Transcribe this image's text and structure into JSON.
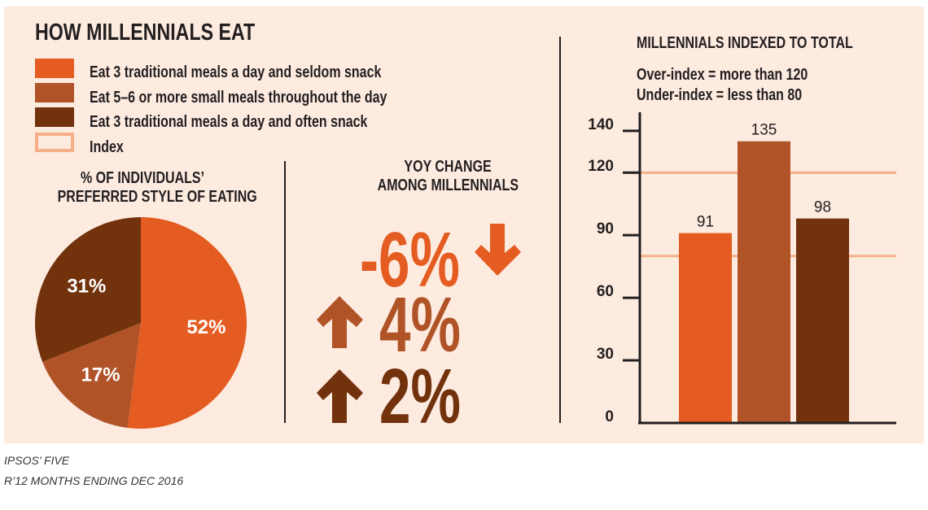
{
  "title": "HOW MILLENNIALS EAT",
  "colors": {
    "seldom": "#e55c22",
    "small": "#b05428",
    "often": "#72320c",
    "index": "#f5b08a",
    "background": "#fdebe0"
  },
  "legend": [
    {
      "label": "Eat 3 traditional meals a day and seldom snack",
      "color": "#e55c22"
    },
    {
      "label": "Eat 5–6 or more small meals throughout the day",
      "color": "#b05428"
    },
    {
      "label": "Eat 3 traditional meals a day and often snack",
      "color": "#72320c"
    },
    {
      "label": "Index",
      "color": "#f5b08a",
      "style": "outline"
    }
  ],
  "yoy": {
    "title_line1": "YOY CHANGE",
    "title_line2": "AMONG MILLENNIALS",
    "items": [
      {
        "value": "-6%",
        "direction": "down",
        "icon": "arrow-down-icon",
        "color": "#e55c22"
      },
      {
        "value": "4%",
        "direction": "up",
        "icon": "arrow-up-icon",
        "color": "#b05428"
      },
      {
        "value": "2%",
        "direction": "up",
        "icon": "arrow-up-icon",
        "color": "#72320c"
      }
    ]
  },
  "chart_data": [
    {
      "type": "pie",
      "title_line1": "% OF INDIVIDUALS’",
      "title_line2": "PREFERRED STYLE OF EATING",
      "slices": [
        {
          "label": "Eat 3 traditional meals a day and seldom snack",
          "value": 52,
          "text": "52%",
          "color": "#e55c22"
        },
        {
          "label": "Eat 5–6 or more small meals throughout the day",
          "value": 17,
          "text": "17%",
          "color": "#b05428"
        },
        {
          "label": "Eat 3 traditional meals a day and often snack",
          "value": 31,
          "text": "31%",
          "color": "#72320c"
        }
      ]
    },
    {
      "type": "bar",
      "title": "MILLENNIALS INDEXED TO TOTAL",
      "note_line1": "Over-index = more than 120",
      "note_line2": "Under-index = less than 80",
      "ylim": [
        0,
        140
      ],
      "yticks": [
        0,
        30,
        60,
        90,
        120,
        140
      ],
      "index_lines": [
        120,
        80
      ],
      "bars": [
        {
          "category": "Eat 3 traditional meals a day and seldom snack",
          "value": 91,
          "color": "#e55c22"
        },
        {
          "category": "Eat 5–6 or more small meals throughout the day",
          "value": 135,
          "color": "#b05428"
        },
        {
          "category": "Eat 3 traditional meals a day and often snack",
          "value": 98,
          "color": "#72320c"
        }
      ]
    }
  ],
  "footer": {
    "line1": "IPSOS’ FIVE",
    "line2": "R’12 MONTHS ENDING DEC 2016"
  }
}
